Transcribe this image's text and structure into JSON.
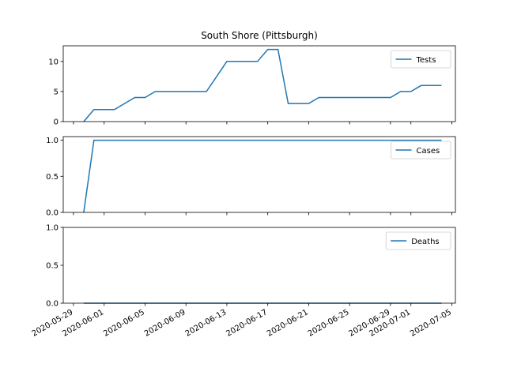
{
  "chart_data": {
    "type": "line",
    "title": "South Shore (Pittsburgh)",
    "color": "#1f77b4",
    "x": [
      "2020-05-30",
      "2020-05-31",
      "2020-06-01",
      "2020-06-02",
      "2020-06-03",
      "2020-06-04",
      "2020-06-05",
      "2020-06-06",
      "2020-06-07",
      "2020-06-08",
      "2020-06-09",
      "2020-06-10",
      "2020-06-11",
      "2020-06-12",
      "2020-06-13",
      "2020-06-14",
      "2020-06-15",
      "2020-06-16",
      "2020-06-17",
      "2020-06-18",
      "2020-06-19",
      "2020-06-20",
      "2020-06-21",
      "2020-06-22",
      "2020-06-23",
      "2020-06-24",
      "2020-06-25",
      "2020-06-26",
      "2020-06-27",
      "2020-06-28",
      "2020-06-29",
      "2020-06-30",
      "2020-07-01",
      "2020-07-02",
      "2020-07-03",
      "2020-07-04"
    ],
    "x_ticks": [
      "2020-05-29",
      "2020-06-01",
      "2020-06-05",
      "2020-06-09",
      "2020-06-13",
      "2020-06-17",
      "2020-06-21",
      "2020-06-25",
      "2020-06-29",
      "2020-07-01",
      "2020-07-05"
    ],
    "panels": [
      {
        "series_name": "Tests",
        "ylim": [
          0,
          12.6
        ],
        "yticks": [
          "0",
          "5",
          "10"
        ],
        "ytick_values": [
          0,
          5,
          10
        ],
        "values": [
          0,
          2,
          2,
          2,
          3,
          4,
          4,
          5,
          5,
          5,
          5,
          5,
          5,
          7.5,
          10,
          10,
          10,
          10,
          12,
          12,
          3,
          3,
          3,
          4,
          4,
          4,
          4,
          4,
          4,
          4,
          4,
          5,
          5,
          6,
          6,
          6
        ]
      },
      {
        "series_name": "Cases",
        "ylim": [
          0,
          1.05
        ],
        "yticks": [
          "0.0",
          "0.5",
          "1.0"
        ],
        "ytick_values": [
          0,
          0.5,
          1.0
        ],
        "values": [
          0,
          1,
          1,
          1,
          1,
          1,
          1,
          1,
          1,
          1,
          1,
          1,
          1,
          1,
          1,
          1,
          1,
          1,
          1,
          1,
          1,
          1,
          1,
          1,
          1,
          1,
          1,
          1,
          1,
          1,
          1,
          1,
          1,
          1,
          1,
          1
        ]
      },
      {
        "series_name": "Deaths",
        "ylim": [
          0,
          1.0
        ],
        "yticks": [
          "0.0",
          "0.5",
          "1.0"
        ],
        "ytick_values": [
          0,
          0.5,
          1.0
        ],
        "values": [
          0,
          0,
          0,
          0,
          0,
          0,
          0,
          0,
          0,
          0,
          0,
          0,
          0,
          0,
          0,
          0,
          0,
          0,
          0,
          0,
          0,
          0,
          0,
          0,
          0,
          0,
          0,
          0,
          0,
          0,
          0,
          0,
          0,
          0,
          0,
          0
        ]
      }
    ]
  }
}
